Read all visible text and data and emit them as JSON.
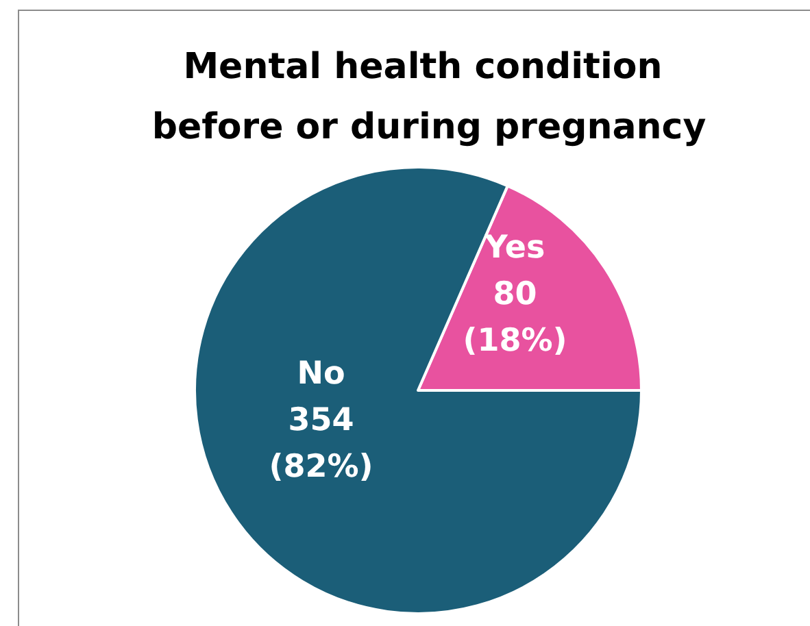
{
  "chart_data": {
    "type": "pie",
    "title": "Mental health condition before or during pregnancy",
    "categories": [
      "Yes",
      "No"
    ],
    "values": [
      80,
      354
    ],
    "colors": [
      "#e8529f",
      "#1b5e78"
    ],
    "value_labels": [
      "80 (18%)",
      "354 (82%)"
    ],
    "legend": false
  }
}
